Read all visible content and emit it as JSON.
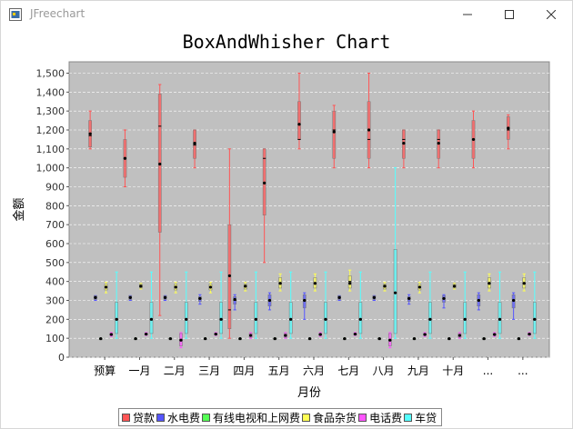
{
  "window": {
    "title": "JFreechart"
  },
  "chart_data": {
    "type": "box",
    "title": "BoxAndWhisher Chart",
    "xlabel": "月份",
    "ylabel": "金额",
    "ylim": [
      0,
      1560
    ],
    "yticks": [
      0,
      100,
      200,
      300,
      400,
      500,
      600,
      700,
      800,
      900,
      1000,
      1100,
      1200,
      1300,
      1400,
      1500
    ],
    "ytick_labels": [
      "0",
      "100",
      "200",
      "300",
      "400",
      "500",
      "600",
      "700",
      "800",
      "900",
      "1,000",
      "1,100",
      "1,200",
      "1,300",
      "1,400",
      "1,500"
    ],
    "categories": [
      "预算",
      "一月",
      "二月",
      "三月",
      "四月",
      "五月",
      "六月",
      "七月",
      "八月",
      "九月",
      "十月",
      "...",
      "..."
    ],
    "background": "#c0c0c0",
    "grid": true,
    "legend_position": "bottom",
    "series": [
      {
        "name": "贷款",
        "color": "#ff5555",
        "boxes": [
          {
            "min": 1100,
            "q1": 1110,
            "median": 1170,
            "mean": 1180,
            "q3": 1250,
            "max": 1300
          },
          {
            "min": 900,
            "q1": 950,
            "median": 1050,
            "mean": 1050,
            "q3": 1150,
            "max": 1200
          },
          {
            "min": 220,
            "q1": 660,
            "median": 1220,
            "mean": 1020,
            "q3": 1390,
            "max": 1440
          },
          {
            "min": 1000,
            "q1": 1050,
            "median": 1120,
            "mean": 1130,
            "q3": 1200,
            "max": 1200
          },
          {
            "min": 100,
            "q1": 150,
            "median": 250,
            "mean": 430,
            "q3": 700,
            "max": 1100
          },
          {
            "min": 500,
            "q1": 750,
            "median": 1050,
            "mean": 920,
            "q3": 1100,
            "max": 1100
          },
          {
            "min": 1100,
            "q1": 1150,
            "median": 1150,
            "mean": 1230,
            "q3": 1350,
            "max": 1500
          },
          {
            "min": 1000,
            "q1": 1050,
            "median": 1200,
            "mean": 1190,
            "q3": 1300,
            "max": 1330
          },
          {
            "min": 1000,
            "q1": 1050,
            "median": 1150,
            "mean": 1200,
            "q3": 1350,
            "max": 1500
          },
          {
            "min": 1000,
            "q1": 1050,
            "median": 1150,
            "mean": 1130,
            "q3": 1200,
            "max": 1200
          },
          {
            "min": 1000,
            "q1": 1050,
            "median": 1150,
            "mean": 1130,
            "q3": 1200,
            "max": 1200
          },
          {
            "min": 1000,
            "q1": 1050,
            "median": 1150,
            "mean": 1150,
            "q3": 1250,
            "max": 1300
          },
          {
            "min": 1100,
            "q1": 1150,
            "median": 1200,
            "mean": 1210,
            "q3": 1270,
            "max": 1280
          }
        ]
      },
      {
        "name": "水电费",
        "color": "#5555ff",
        "boxes": [
          {
            "min": 300,
            "q1": 305,
            "median": 315,
            "mean": 315,
            "q3": 325,
            "max": 325
          },
          {
            "min": 300,
            "q1": 305,
            "median": 315,
            "mean": 315,
            "q3": 325,
            "max": 325
          },
          {
            "min": 300,
            "q1": 305,
            "median": 315,
            "mean": 315,
            "q3": 325,
            "max": 325
          },
          {
            "min": 280,
            "q1": 295,
            "median": 310,
            "mean": 310,
            "q3": 320,
            "max": 330
          },
          {
            "min": 250,
            "q1": 280,
            "median": 300,
            "mean": 305,
            "q3": 320,
            "max": 330
          },
          {
            "min": 250,
            "q1": 270,
            "median": 300,
            "mean": 300,
            "q3": 330,
            "max": 340
          },
          {
            "min": 200,
            "q1": 260,
            "median": 300,
            "mean": 300,
            "q3": 330,
            "max": 340
          },
          {
            "min": 300,
            "q1": 305,
            "median": 315,
            "mean": 315,
            "q3": 325,
            "max": 325
          },
          {
            "min": 300,
            "q1": 305,
            "median": 315,
            "mean": 315,
            "q3": 325,
            "max": 325
          },
          {
            "min": 280,
            "q1": 295,
            "median": 310,
            "mean": 310,
            "q3": 320,
            "max": 330
          },
          {
            "min": 260,
            "q1": 290,
            "median": 310,
            "mean": 310,
            "q3": 325,
            "max": 330
          },
          {
            "min": 250,
            "q1": 270,
            "median": 300,
            "mean": 300,
            "q3": 330,
            "max": 340
          },
          {
            "min": 200,
            "q1": 260,
            "median": 300,
            "mean": 300,
            "q3": 330,
            "max": 340
          }
        ]
      },
      {
        "name": "有线电视和上网费",
        "color": "#55ff55",
        "boxes": [
          {
            "min": 95,
            "q1": 97,
            "median": 98,
            "mean": 98,
            "q3": 99,
            "max": 100
          },
          {
            "min": 95,
            "q1": 97,
            "median": 98,
            "mean": 98,
            "q3": 99,
            "max": 100
          },
          {
            "min": 95,
            "q1": 97,
            "median": 98,
            "mean": 98,
            "q3": 99,
            "max": 100
          },
          {
            "min": 95,
            "q1": 97,
            "median": 98,
            "mean": 98,
            "q3": 99,
            "max": 100
          },
          {
            "min": 95,
            "q1": 97,
            "median": 98,
            "mean": 98,
            "q3": 99,
            "max": 100
          },
          {
            "min": 95,
            "q1": 97,
            "median": 98,
            "mean": 98,
            "q3": 99,
            "max": 100
          },
          {
            "min": 95,
            "q1": 97,
            "median": 98,
            "mean": 98,
            "q3": 99,
            "max": 100
          },
          {
            "min": 95,
            "q1": 97,
            "median": 98,
            "mean": 98,
            "q3": 99,
            "max": 100
          },
          {
            "min": 95,
            "q1": 97,
            "median": 98,
            "mean": 98,
            "q3": 99,
            "max": 100
          },
          {
            "min": 95,
            "q1": 97,
            "median": 98,
            "mean": 98,
            "q3": 99,
            "max": 100
          },
          {
            "min": 95,
            "q1": 97,
            "median": 98,
            "mean": 98,
            "q3": 99,
            "max": 100
          },
          {
            "min": 95,
            "q1": 97,
            "median": 98,
            "mean": 98,
            "q3": 99,
            "max": 100
          },
          {
            "min": 95,
            "q1": 97,
            "median": 98,
            "mean": 98,
            "q3": 99,
            "max": 100
          }
        ]
      },
      {
        "name": "食品杂货",
        "color": "#ffff55",
        "boxes": [
          {
            "min": 340,
            "q1": 355,
            "median": 370,
            "mean": 370,
            "q3": 385,
            "max": 395
          },
          {
            "min": 360,
            "q1": 365,
            "median": 375,
            "mean": 375,
            "q3": 385,
            "max": 390
          },
          {
            "min": 340,
            "q1": 355,
            "median": 370,
            "mean": 370,
            "q3": 385,
            "max": 395
          },
          {
            "min": 340,
            "q1": 355,
            "median": 370,
            "mean": 370,
            "q3": 385,
            "max": 395
          },
          {
            "min": 350,
            "q1": 360,
            "median": 375,
            "mean": 375,
            "q3": 385,
            "max": 395
          },
          {
            "min": 350,
            "q1": 365,
            "median": 390,
            "mean": 390,
            "q3": 420,
            "max": 440
          },
          {
            "min": 350,
            "q1": 365,
            "median": 390,
            "mean": 390,
            "q3": 420,
            "max": 440
          },
          {
            "min": 350,
            "q1": 365,
            "median": 400,
            "mean": 390,
            "q3": 430,
            "max": 460
          },
          {
            "min": 350,
            "q1": 360,
            "median": 375,
            "mean": 375,
            "q3": 385,
            "max": 395
          },
          {
            "min": 340,
            "q1": 355,
            "median": 370,
            "mean": 370,
            "q3": 385,
            "max": 395
          },
          {
            "min": 360,
            "q1": 365,
            "median": 375,
            "mean": 375,
            "q3": 385,
            "max": 390
          },
          {
            "min": 350,
            "q1": 365,
            "median": 390,
            "mean": 390,
            "q3": 420,
            "max": 440
          },
          {
            "min": 350,
            "q1": 365,
            "median": 390,
            "mean": 390,
            "q3": 420,
            "max": 440
          }
        ]
      },
      {
        "name": "电话费",
        "color": "#ff55ff",
        "boxes": [
          {
            "min": 110,
            "q1": 115,
            "median": 120,
            "mean": 120,
            "q3": 125,
            "max": 130
          },
          {
            "min": 115,
            "q1": 118,
            "median": 122,
            "mean": 122,
            "q3": 126,
            "max": 130
          },
          {
            "min": 50,
            "q1": 60,
            "median": 90,
            "mean": 90,
            "q3": 125,
            "max": 130
          },
          {
            "min": 115,
            "q1": 118,
            "median": 122,
            "mean": 122,
            "q3": 126,
            "max": 130
          },
          {
            "min": 100,
            "q1": 105,
            "median": 115,
            "mean": 115,
            "q3": 125,
            "max": 130
          },
          {
            "min": 100,
            "q1": 105,
            "median": 115,
            "mean": 115,
            "q3": 125,
            "max": 130
          },
          {
            "min": 110,
            "q1": 115,
            "median": 120,
            "mean": 120,
            "q3": 125,
            "max": 130
          },
          {
            "min": 115,
            "q1": 118,
            "median": 122,
            "mean": 122,
            "q3": 126,
            "max": 130
          },
          {
            "min": 50,
            "q1": 60,
            "median": 90,
            "mean": 90,
            "q3": 125,
            "max": 130
          },
          {
            "min": 110,
            "q1": 115,
            "median": 120,
            "mean": 120,
            "q3": 125,
            "max": 130
          },
          {
            "min": 100,
            "q1": 105,
            "median": 115,
            "mean": 115,
            "q3": 125,
            "max": 130
          },
          {
            "min": 110,
            "q1": 115,
            "median": 120,
            "mean": 120,
            "q3": 125,
            "max": 130
          },
          {
            "min": 115,
            "q1": 118,
            "median": 122,
            "mean": 122,
            "q3": 126,
            "max": 130
          }
        ]
      },
      {
        "name": "车贷",
        "color": "#55ffff",
        "boxes": [
          {
            "min": 100,
            "q1": 125,
            "median": 200,
            "mean": 200,
            "q3": 290,
            "max": 450
          },
          {
            "min": 100,
            "q1": 125,
            "median": 200,
            "mean": 200,
            "q3": 290,
            "max": 450
          },
          {
            "min": 100,
            "q1": 125,
            "median": 200,
            "mean": 200,
            "q3": 290,
            "max": 450
          },
          {
            "min": 100,
            "q1": 125,
            "median": 200,
            "mean": 200,
            "q3": 290,
            "max": 450
          },
          {
            "min": 100,
            "q1": 125,
            "median": 200,
            "mean": 200,
            "q3": 290,
            "max": 450
          },
          {
            "min": 100,
            "q1": 125,
            "median": 200,
            "mean": 200,
            "q3": 290,
            "max": 450
          },
          {
            "min": 100,
            "q1": 125,
            "median": 200,
            "mean": 200,
            "q3": 290,
            "max": 450
          },
          {
            "min": 100,
            "q1": 125,
            "median": 200,
            "mean": 200,
            "q3": 290,
            "max": 450
          },
          {
            "min": 100,
            "q1": 125,
            "median": 340,
            "mean": 340,
            "q3": 570,
            "max": 1000
          },
          {
            "min": 100,
            "q1": 125,
            "median": 200,
            "mean": 200,
            "q3": 290,
            "max": 450
          },
          {
            "min": 100,
            "q1": 125,
            "median": 200,
            "mean": 200,
            "q3": 290,
            "max": 450
          },
          {
            "min": 100,
            "q1": 125,
            "median": 200,
            "mean": 200,
            "q3": 290,
            "max": 450
          },
          {
            "min": 100,
            "q1": 125,
            "median": 200,
            "mean": 200,
            "q3": 290,
            "max": 450
          }
        ]
      }
    ]
  }
}
